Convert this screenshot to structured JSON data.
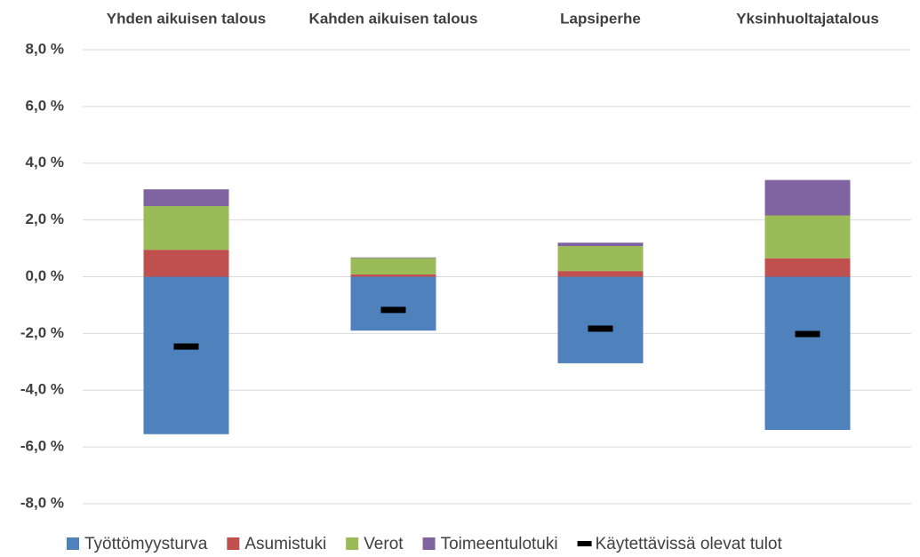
{
  "chart_data": {
    "type": "stacked_bar",
    "categories": [
      "Yhden aikuisen talous",
      "Kahden aikuisen talous",
      "Lapsiperhe",
      "Yksinhuoltajatalous"
    ],
    "series": [
      {
        "name": "Työttömyysturva",
        "color": "#4f81bd",
        "values": [
          -5.55,
          -1.9,
          -3.05,
          -5.4
        ]
      },
      {
        "name": "Asumistuki",
        "color": "#c0504d",
        "values": [
          0.95,
          0.08,
          0.2,
          0.65
        ]
      },
      {
        "name": "Verot",
        "color": "#9bbb59",
        "values": [
          1.54,
          0.58,
          0.88,
          1.51
        ]
      },
      {
        "name": "Toimeentulotuki",
        "color": "#8064a2",
        "values": [
          0.59,
          0.02,
          0.12,
          1.25
        ]
      },
      {
        "name": "Käytettävissä olevat tulot",
        "color": "#000000",
        "marker": "dash",
        "values": [
          -2.46,
          -1.17,
          -1.83,
          -2.02
        ]
      }
    ],
    "ylim": [
      -8,
      8
    ],
    "yticks": [
      {
        "value": -8,
        "label": "-8,0 %"
      },
      {
        "value": -6,
        "label": "-6,0 %"
      },
      {
        "value": -4,
        "label": "-4,0 %"
      },
      {
        "value": -2,
        "label": "-2,0 %"
      },
      {
        "value": 0,
        "label": "0,0 %"
      },
      {
        "value": 2,
        "label": "2,0 %"
      },
      {
        "value": 4,
        "label": "4,0 %"
      },
      {
        "value": 6,
        "label": "6,0 %"
      },
      {
        "value": 8,
        "label": "8,0 %"
      }
    ],
    "grid": true,
    "legend": "bottom"
  }
}
